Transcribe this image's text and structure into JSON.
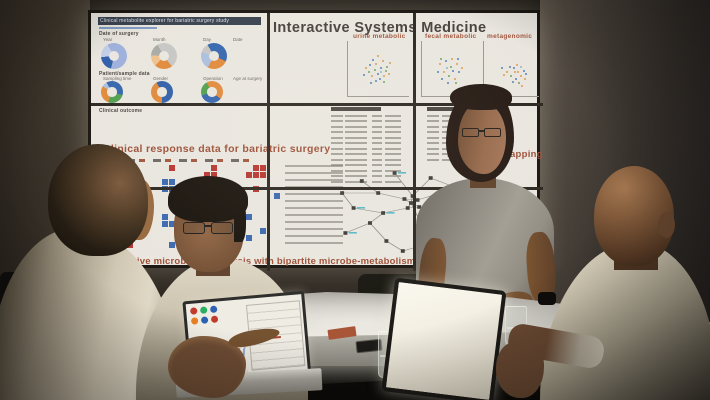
{
  "wall": {
    "main_title": "Interactive Systems Medicine",
    "explorer": {
      "title": "Clinical metabolite explorer for bariatric surgery study",
      "sections": {
        "date": "Date of surgery",
        "patient": "Patient/sample data",
        "outcome": "Clinical outcome"
      },
      "donut_labels": {
        "year": "Year",
        "month": "Month",
        "day": "Day",
        "sampling": "Sampling time",
        "gender": "Gender",
        "operation": "Operation"
      },
      "hist_labels": {
        "date": "Date",
        "age": "Age at surgery"
      }
    },
    "scatter_titles": {
      "urine": "urine metabolic",
      "fecal": "fecal metabolic",
      "meta": "metagenomic"
    },
    "response_title": "Clinical response data for bariatric surgery",
    "phenotype_title": "Phenotype mapping",
    "banner": "Interactive microbiome analysis with bipartite microbe-metabolism network mapping",
    "colors": {
      "accent_red": "#9c4e36",
      "chart_blue": "#5b82b5",
      "heat_red": "#b5342e",
      "heat_blue": "#3a67b0",
      "net_cyan": "#56b8c8"
    }
  },
  "chart_data": [
    {
      "type": "pie",
      "title": "Year / Month / Day / Sampling time / Gender / Operation donut filters"
    },
    {
      "type": "bar",
      "title": "Date, Age at surgery and Clinical outcome histograms"
    },
    {
      "type": "scatter",
      "title": "urine metabolic / fecal metabolic / metagenomic ordination plots"
    },
    {
      "type": "heatmap",
      "title": "Clinical response heatmap (red/blue cells)"
    }
  ],
  "charts": {
    "donut_year": {
      "type": "donut",
      "segments": [
        [
          "#9db0dc",
          62
        ],
        [
          "#2f5ea8",
          20
        ],
        [
          "#c3cde8",
          18
        ]
      ]
    },
    "donut_month": {
      "type": "donut",
      "segments": [
        [
          "#c6c6c4",
          48
        ],
        [
          "#e0893a",
          22
        ],
        [
          "#eec08c",
          14
        ],
        [
          "#a8a8a6",
          16
        ]
      ]
    },
    "donut_day": {
      "type": "donut",
      "segments": [
        [
          "#3465ad",
          40
        ],
        [
          "#e0893a",
          26
        ],
        [
          "#a9bedf",
          22
        ],
        [
          "#c6c6c4",
          12
        ]
      ]
    },
    "donut_sampling": {
      "type": "donut",
      "segments": [
        [
          "#3465ad",
          38
        ],
        [
          "#4f9e4f",
          26
        ],
        [
          "#e0893a",
          28
        ],
        [
          "#a9bedf",
          8
        ]
      ]
    },
    "donut_gender": {
      "type": "donut",
      "segments": [
        [
          "#2f5ea8",
          58
        ],
        [
          "#e0893a",
          42
        ]
      ]
    },
    "donut_operation": {
      "type": "donut",
      "segments": [
        [
          "#e0893a",
          44
        ],
        [
          "#3465ad",
          34
        ],
        [
          "#4f9e4f",
          22
        ]
      ]
    },
    "hist_date": {
      "type": "bars",
      "color": "#5b82b5",
      "values": [
        5,
        1.5,
        0.8,
        0.6,
        0.5,
        0.4,
        0.3,
        0.2
      ]
    },
    "hist_age": {
      "type": "bars",
      "color": "#5b82b5",
      "values": [
        0.5,
        1,
        0.5,
        2,
        1.5,
        3,
        2,
        5,
        3.5,
        6,
        8,
        4,
        5.5,
        3,
        2,
        3.5,
        1.5,
        0.8
      ]
    },
    "hist_out1": {
      "type": "bars",
      "color": "#6c8fba",
      "values": [
        1,
        2.5,
        5,
        3,
        2,
        4,
        2,
        1,
        0.5,
        0.4
      ]
    },
    "hist_out2": {
      "type": "bars",
      "color": "#6c8fba",
      "values": [
        0.5,
        1,
        2,
        6,
        4,
        3,
        1.5,
        1,
        0.5,
        0.3
      ]
    },
    "hist_out3": {
      "type": "bars",
      "color": "#6c8fba",
      "values": [
        0.4,
        0.8,
        1.5,
        2,
        6,
        3,
        1.2,
        0.6,
        0.4,
        0.3
      ]
    },
    "hist_out4": {
      "type": "bars",
      "color": "#6c8fba",
      "values": [
        0.5,
        1,
        2,
        3.5,
        5.5,
        4,
        2,
        1,
        0.6,
        0.4
      ]
    },
    "hist_ism1": {
      "type": "bars",
      "color": "#3f6btrim",
      "values": [
        0.3,
        0.4,
        6,
        7,
        1,
        0.5,
        0.3,
        0.2,
        3,
        0.3,
        0.2,
        0.2
      ]
    },
    "hist_ism2": {
      "type": "bars",
      "color": "#3f6ba8",
      "values": [
        3,
        1,
        4,
        2,
        1,
        0.6,
        0.3,
        0.2
      ]
    },
    "scatter_urine": {
      "type": "scatter",
      "palette": [
        "#6da35f",
        "#d99a4f",
        "#4f7fba",
        "#8ab6c9"
      ],
      "points": [
        [
          0.32,
          0.55,
          0
        ],
        [
          0.45,
          0.4,
          1
        ],
        [
          0.52,
          0.48,
          2
        ],
        [
          0.38,
          0.62,
          1
        ],
        [
          0.6,
          0.52,
          0
        ],
        [
          0.48,
          0.58,
          2
        ],
        [
          0.55,
          0.35,
          1
        ],
        [
          0.42,
          0.5,
          0
        ],
        [
          0.35,
          0.42,
          2
        ],
        [
          0.58,
          0.62,
          1
        ],
        [
          0.5,
          0.68,
          2
        ],
        [
          0.62,
          0.45,
          0
        ],
        [
          0.28,
          0.48,
          1
        ],
        [
          0.44,
          0.7,
          2
        ],
        [
          0.66,
          0.58,
          1
        ],
        [
          0.53,
          0.55,
          3
        ],
        [
          0.4,
          0.33,
          2
        ],
        [
          0.57,
          0.72,
          0
        ],
        [
          0.47,
          0.25,
          1
        ],
        [
          0.36,
          0.75,
          2
        ],
        [
          0.68,
          0.38,
          1
        ],
        [
          0.25,
          0.6,
          2
        ]
      ]
    },
    "scatter_fecal": {
      "type": "scatter",
      "palette": [
        "#6da35f",
        "#d99a4f",
        "#4f7fba",
        "#8ab6c9"
      ],
      "points": [
        [
          0.3,
          0.4,
          1
        ],
        [
          0.42,
          0.35,
          2
        ],
        [
          0.5,
          0.45,
          0
        ],
        [
          0.38,
          0.55,
          1
        ],
        [
          0.55,
          0.52,
          2
        ],
        [
          0.62,
          0.4,
          1
        ],
        [
          0.48,
          0.62,
          0
        ],
        [
          0.35,
          0.68,
          2
        ],
        [
          0.58,
          0.68,
          1
        ],
        [
          0.66,
          0.55,
          2
        ],
        [
          0.44,
          0.48,
          3
        ],
        [
          0.52,
          0.3,
          1
        ],
        [
          0.28,
          0.55,
          2
        ],
        [
          0.6,
          0.75,
          0
        ],
        [
          0.7,
          0.48,
          1
        ],
        [
          0.46,
          0.75,
          2
        ],
        [
          0.33,
          0.3,
          0
        ],
        [
          0.64,
          0.3,
          2
        ]
      ]
    },
    "scatter_meta": {
      "type": "scatter",
      "palette": [
        "#6da35f",
        "#d99a4f",
        "#4f7fba",
        "#8ab6c9"
      ],
      "points": [
        [
          0.4,
          0.55,
          1
        ],
        [
          0.52,
          0.48,
          2
        ],
        [
          0.6,
          0.55,
          1
        ],
        [
          0.48,
          0.62,
          0
        ],
        [
          0.56,
          0.68,
          2
        ],
        [
          0.65,
          0.62,
          1
        ],
        [
          0.7,
          0.52,
          2
        ],
        [
          0.58,
          0.42,
          1
        ],
        [
          0.45,
          0.45,
          2
        ],
        [
          0.62,
          0.75,
          0
        ],
        [
          0.72,
          0.68,
          1
        ],
        [
          0.5,
          0.72,
          2
        ],
        [
          0.35,
          0.6,
          1
        ],
        [
          0.66,
          0.45,
          3
        ],
        [
          0.74,
          0.58,
          2
        ],
        [
          0.55,
          0.55,
          1
        ],
        [
          0.3,
          0.48,
          2
        ],
        [
          0.68,
          0.8,
          1
        ]
      ]
    },
    "heatmap_response": {
      "type": "heatmap",
      "red": "#b5342e",
      "blue": "#3a67b0",
      "rows": [
        "..........r.....r.....rr..",
        "....b..........rr....rrr..",
        "..b......bb......r........",
        "...bb....bbb..rr......r...",
        ".r..b.....b....r.........b",
        "....bbb...rr......b.......",
        ".b...b..........r.........",
        "..r......b...........b....",
        "...b.....bb.......bbb.....",
        ".....b.......bbb.......b..",
        "..b.........bbb......b....",
        "....r.....b......bb......."
      ]
    },
    "table_mid": {
      "type": "table",
      "rows": 13,
      "cols": [
        16,
        30,
        14,
        22
      ]
    },
    "table_right": {
      "type": "table",
      "rows": 9,
      "cols": [
        14,
        26,
        18,
        20
      ]
    },
    "network_main": {
      "type": "network",
      "node_color": "#3c3a36",
      "edge_color": "#8e8c85",
      "accent": "#56b8c8",
      "nodes": [
        [
          0.5,
          0.4
        ],
        [
          0.46,
          0.36
        ],
        [
          0.54,
          0.37
        ],
        [
          0.48,
          0.45
        ],
        [
          0.55,
          0.44
        ],
        [
          0.51,
          0.33
        ],
        [
          0.2,
          0.18
        ],
        [
          0.3,
          0.3
        ],
        [
          0.15,
          0.45,
          1
        ],
        [
          0.25,
          0.6
        ],
        [
          0.35,
          0.78
        ],
        [
          0.1,
          0.7,
          1
        ],
        [
          0.45,
          0.88
        ],
        [
          0.62,
          0.8
        ],
        [
          0.75,
          0.65
        ],
        [
          0.85,
          0.45,
          1
        ],
        [
          0.78,
          0.25
        ],
        [
          0.62,
          0.15
        ],
        [
          0.4,
          0.1,
          1
        ],
        [
          0.08,
          0.3
        ],
        [
          0.7,
          0.92
        ],
        [
          0.9,
          0.75
        ],
        [
          0.33,
          0.5,
          1
        ]
      ],
      "edges": [
        [
          0,
          1
        ],
        [
          0,
          2
        ],
        [
          0,
          3
        ],
        [
          0,
          4
        ],
        [
          0,
          5
        ],
        [
          1,
          2
        ],
        [
          2,
          5
        ],
        [
          3,
          4
        ],
        [
          1,
          7
        ],
        [
          7,
          6
        ],
        [
          7,
          19
        ],
        [
          3,
          22
        ],
        [
          22,
          8
        ],
        [
          22,
          9
        ],
        [
          9,
          11
        ],
        [
          9,
          10
        ],
        [
          10,
          12
        ],
        [
          4,
          14
        ],
        [
          14,
          15
        ],
        [
          14,
          21
        ],
        [
          2,
          16
        ],
        [
          16,
          17
        ],
        [
          5,
          17
        ],
        [
          5,
          18
        ],
        [
          13,
          14
        ],
        [
          12,
          13
        ],
        [
          13,
          20
        ],
        [
          0,
          13
        ],
        [
          8,
          19
        ]
      ]
    },
    "lap_bars": {
      "type": "bars",
      "color": "#4f7fba",
      "values": [
        2,
        4,
        1,
        3,
        2,
        5,
        1,
        2
      ]
    },
    "lap_dots": {
      "type": "dots",
      "colors": [
        "#c0392b",
        "#27ae60",
        "#2a5fb0",
        "#e67e22",
        "#2a5fb0",
        "#c0392b"
      ]
    }
  }
}
